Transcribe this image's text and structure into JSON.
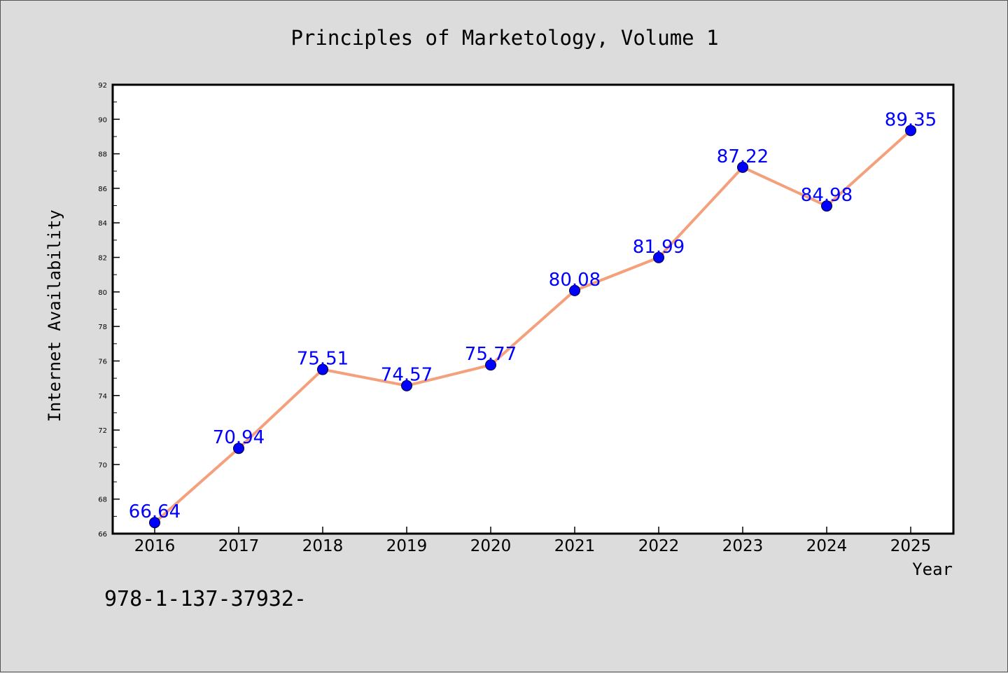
{
  "footer_text": "978-1-137-37932-",
  "colors": {
    "background": "#dcdcdc",
    "plot_background": "#ffffff",
    "line": "#f4a07c",
    "marker": "#0000ff",
    "data_label": "#0000ff"
  },
  "chart_data": {
    "type": "line",
    "title": "Principles of Marketology, Volume 1",
    "xlabel": "Year",
    "ylabel": "Internet Availability",
    "categories": [
      "2016",
      "2017",
      "2018",
      "2019",
      "2020",
      "2021",
      "2022",
      "2023",
      "2024",
      "2025"
    ],
    "series": [
      {
        "values": [
          66.64,
          70.94,
          75.51,
          74.57,
          75.77,
          80.08,
          81.99,
          87.22,
          84.98,
          89.35
        ],
        "labels": [
          "66.64",
          "70.94",
          "75.51",
          "74.57",
          "75.77",
          "80.08",
          "81.99",
          "87.22",
          "84.98",
          "89.35"
        ]
      }
    ],
    "ylim": [
      66,
      92
    ],
    "yticks": [
      66,
      68,
      70,
      72,
      74,
      76,
      78,
      80,
      82,
      84,
      86,
      88,
      90,
      92
    ],
    "ytick_labels": [
      "66",
      "68",
      "70",
      "72",
      "74",
      "76",
      "78",
      "80",
      "82",
      "84",
      "86",
      "88",
      "90",
      "92"
    ],
    "grid": false,
    "legend": "none"
  }
}
